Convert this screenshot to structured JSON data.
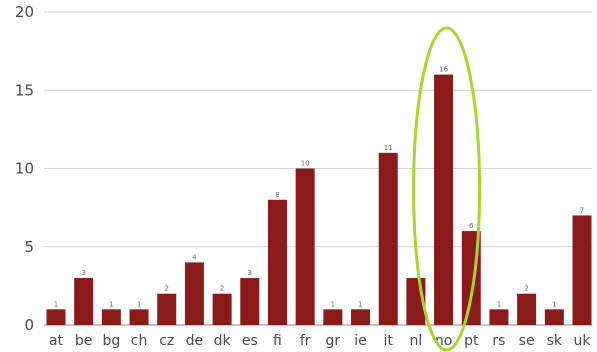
{
  "chart_data": {
    "type": "bar",
    "categories": [
      "at",
      "be",
      "bg",
      "ch",
      "cz",
      "de",
      "dk",
      "es",
      "fi",
      "fr",
      "gr",
      "ie",
      "it",
      "nl",
      "no",
      "pt",
      "rs",
      "se",
      "sk",
      "uk"
    ],
    "values": [
      1,
      3,
      1,
      1,
      2,
      4,
      2,
      3,
      8,
      10,
      1,
      1,
      11,
      3,
      16,
      6,
      1,
      2,
      1,
      7
    ],
    "data_labels": [
      "1",
      "3",
      "1",
      "1",
      "2",
      "4",
      "2",
      "3",
      "8",
      "10",
      "1",
      "1",
      "11",
      "",
      "16",
      "6",
      "1",
      "2",
      "1",
      "7"
    ],
    "ylim": [
      0,
      20
    ],
    "yticks": [
      "0",
      "5",
      "10",
      "15",
      "20"
    ],
    "grid": true,
    "highlight": {
      "category": "no",
      "shape": "ellipse"
    },
    "colors": {
      "bar": "#8b1a1a",
      "highlight": "#a8d62e",
      "grid": "#cfd6df"
    }
  }
}
